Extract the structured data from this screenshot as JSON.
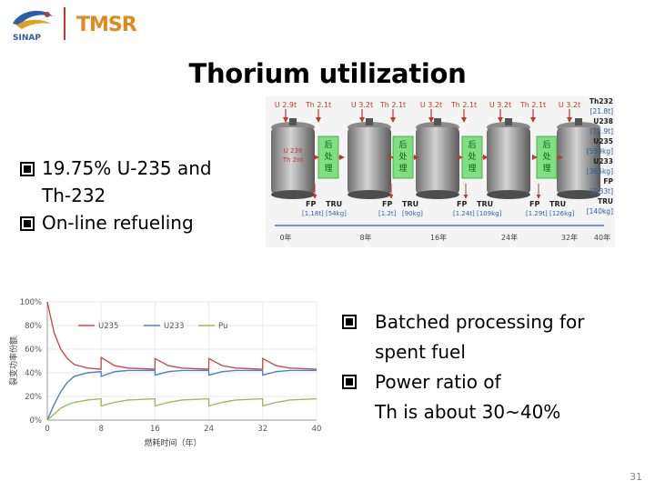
{
  "logos": {
    "left_text": "SINAP",
    "right_text": "TMSR"
  },
  "title": "Thorium utilization",
  "left_bullets": [
    {
      "line1": "19.75% U-235 and",
      "line2": "Th-232"
    },
    {
      "line1": "On-line refueling",
      "line2": ""
    }
  ],
  "right_bullets": [
    {
      "line1": "Batched processing for",
      "line2": "spent fuel"
    },
    {
      "line1": "Power ratio of",
      "line2": "Th is about 30~40%"
    }
  ],
  "diagram": {
    "top_labels": [
      "U 2.9t",
      "Th 2.1t",
      "U 3.2t",
      "Th 2.1t",
      "U 3.2t",
      "Th 2.1t",
      "U 3.2t",
      "Th 2.1t",
      "U 3.2t"
    ],
    "first_reactor_label": [
      "U 238",
      "Th 2nt"
    ],
    "process_label": [
      "后",
      "处",
      "理"
    ],
    "bottom_fp_tru": [
      {
        "fp": "FP",
        "tru": "TRU",
        "fp_val": "[1.18t]",
        "tru_val": "[54kg]"
      },
      {
        "fp": "FP",
        "tru": "TRU",
        "fp_val": "[1.2t]",
        "tru_val": "[90kg]"
      },
      {
        "fp": "FP",
        "tru": "TRU",
        "fp_val": "[1.24t]",
        "tru_val": "[109kg]"
      },
      {
        "fp": "FP",
        "tru": "TRU",
        "fp_val": "[1.29t]",
        "tru_val": "[126kg]"
      }
    ],
    "timeline_labels": [
      "0年",
      "8年",
      "16年",
      "24年",
      "32年",
      "40年"
    ],
    "right_column": [
      "Th232",
      "[21.8t]",
      "U238",
      "[12.9t]",
      "U235",
      "[559kg]",
      "U233",
      "[365kg]",
      "FP",
      "[1.33t]",
      "TRU",
      "[140kg]"
    ]
  },
  "chart_data": {
    "type": "line",
    "title": "",
    "xlabel": "燃耗时间（年）",
    "ylabel": "裂变功率份额",
    "x_ticks": [
      "0",
      "8",
      "16",
      "24",
      "32",
      "40"
    ],
    "y_ticks": [
      "0%",
      "20%",
      "40%",
      "60%",
      "80%",
      "100%"
    ],
    "xlim": [
      0,
      40
    ],
    "ylim": [
      0,
      100
    ],
    "legend": [
      "U235",
      "U233",
      "Pu"
    ],
    "series": [
      {
        "name": "U235",
        "color": "#c0504d",
        "x": [
          0,
          1,
          2,
          3,
          4,
          6,
          7.99,
          8,
          10,
          12,
          15.99,
          16,
          18,
          20,
          23.99,
          24,
          26,
          28,
          31.99,
          32,
          34,
          36,
          40
        ],
        "y": [
          100,
          74,
          60,
          52,
          47,
          44,
          43,
          53,
          46,
          44,
          43,
          52,
          46,
          44,
          43,
          52,
          46,
          44,
          43,
          52,
          46,
          44,
          43
        ]
      },
      {
        "name": "U233",
        "color": "#4f81bd",
        "x": [
          0,
          1,
          2,
          3,
          4,
          6,
          7.99,
          8,
          10,
          12,
          15.99,
          16,
          18,
          20,
          23.99,
          24,
          26,
          28,
          31.99,
          32,
          34,
          36,
          40
        ],
        "y": [
          0,
          13,
          24,
          32,
          37,
          40,
          41,
          37,
          41,
          42,
          42,
          38,
          41,
          42,
          42,
          38,
          41,
          42,
          42,
          38,
          41,
          42,
          42
        ]
      },
      {
        "name": "Pu",
        "color": "#9bbb59",
        "x": [
          0,
          1,
          2,
          3,
          4,
          6,
          7.99,
          8,
          10,
          12,
          15.99,
          16,
          18,
          20,
          23.99,
          24,
          26,
          28,
          31.99,
          32,
          34,
          36,
          40
        ],
        "y": [
          0,
          5,
          10,
          13,
          15,
          17,
          18,
          12,
          15,
          17,
          18,
          12,
          15,
          17,
          18,
          12,
          15,
          17,
          18,
          12,
          15,
          17,
          18
        ]
      }
    ]
  },
  "page_number": "31",
  "colors": {
    "accent_red": "#c0392b",
    "green_box": "#7ee07e",
    "tmsr_orange": "#e08a1e"
  }
}
